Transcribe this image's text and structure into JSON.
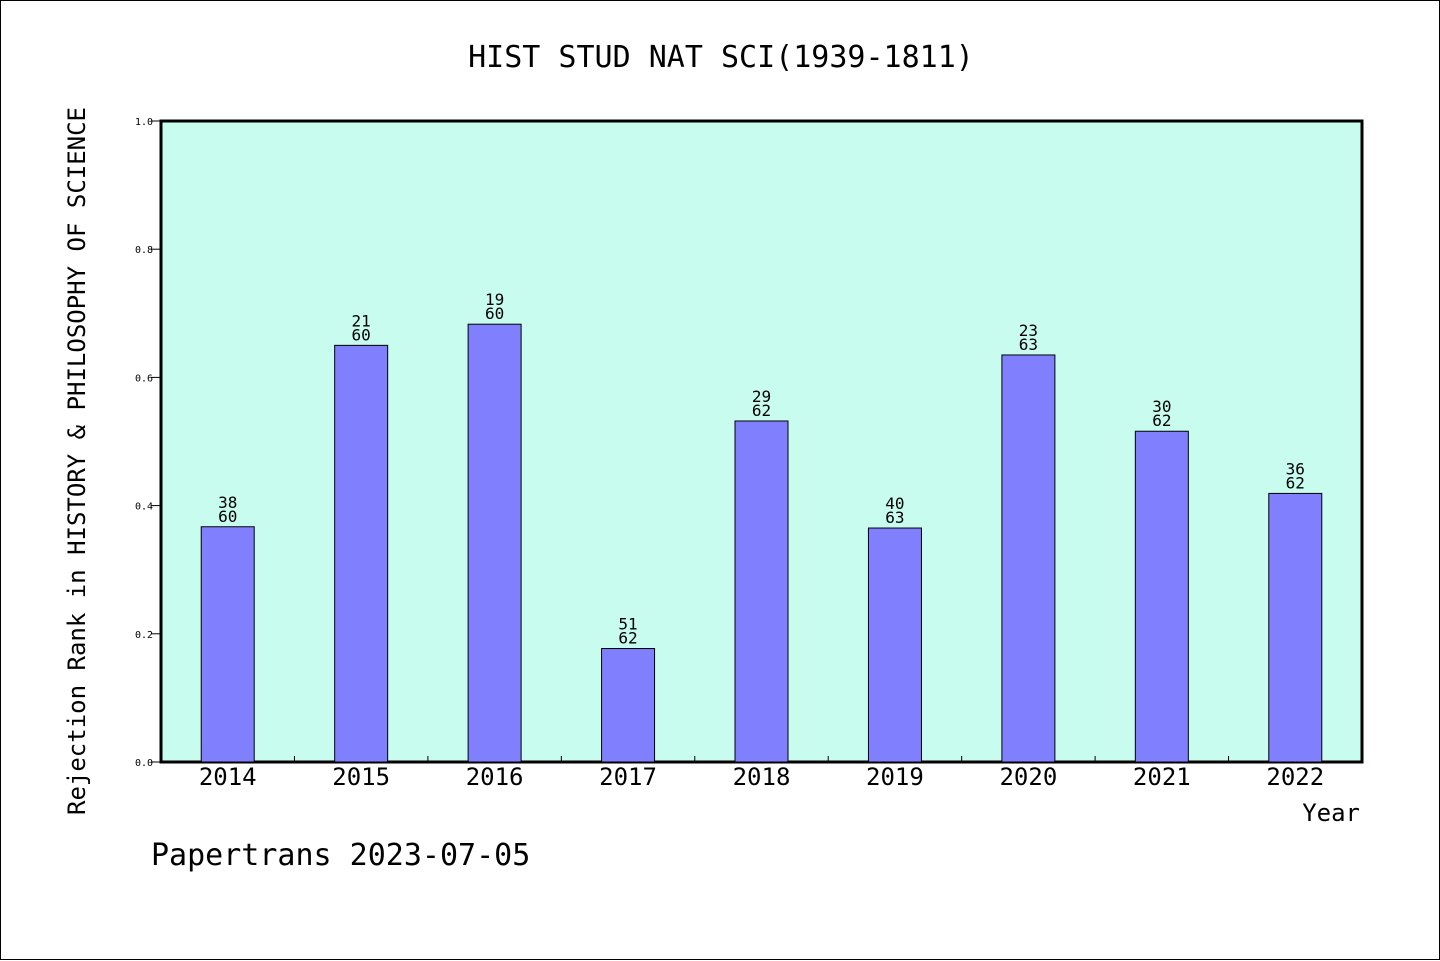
{
  "chart_data": {
    "type": "bar",
    "title": "HIST STUD NAT SCI(1939-1811)",
    "xlabel": "Year",
    "ylabel": "Rejection Rank in HISTORY & PHILOSOPHY OF SCIENCE",
    "ylim": [
      0,
      1.0
    ],
    "yticks": [
      "0.0",
      "0.2",
      "0.4",
      "0.6",
      "0.8",
      "1.0"
    ],
    "categories": [
      "2014",
      "2015",
      "2016",
      "2017",
      "2018",
      "2019",
      "2020",
      "2021",
      "2022"
    ],
    "values": [
      0.367,
      0.65,
      0.683,
      0.177,
      0.532,
      0.365,
      0.635,
      0.516,
      0.419
    ],
    "labels": [
      {
        "rank": "38",
        "total": "60"
      },
      {
        "rank": "21",
        "total": "60"
      },
      {
        "rank": "19",
        "total": "60"
      },
      {
        "rank": "51",
        "total": "62"
      },
      {
        "rank": "29",
        "total": "62"
      },
      {
        "rank": "40",
        "total": "63"
      },
      {
        "rank": "23",
        "total": "63"
      },
      {
        "rank": "30",
        "total": "62"
      },
      {
        "rank": "36",
        "total": "62"
      }
    ],
    "plot_background": "#c8fcee",
    "bar_color": "#8080ff",
    "grid": false,
    "legend": "none"
  },
  "footer": {
    "text": "Papertrans 2023-07-05"
  }
}
